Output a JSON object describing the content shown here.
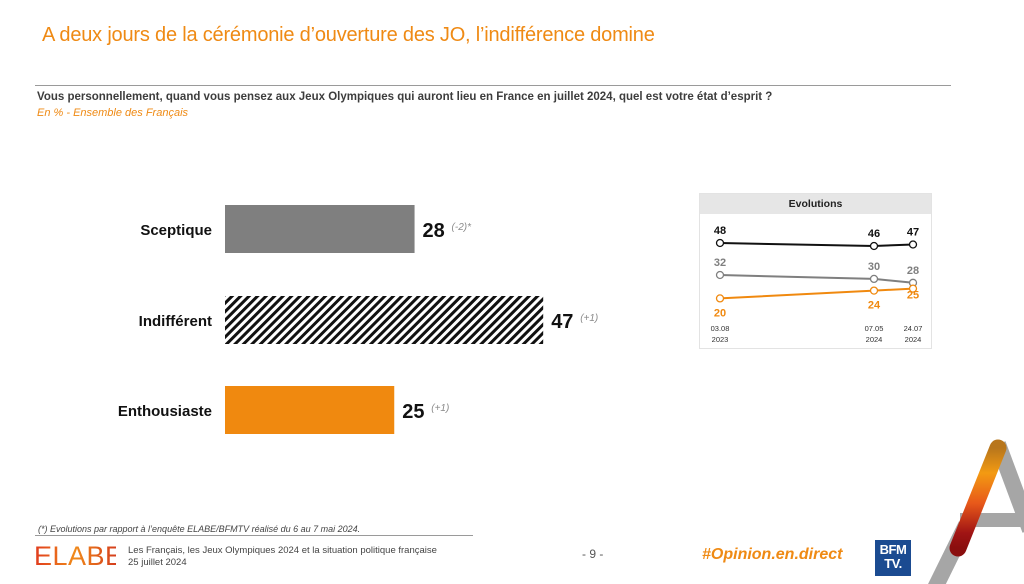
{
  "header": {
    "title": "A deux jours de la cérémonie d’ouverture des JO, l’indifférence domine",
    "question": "Vous personnellement, quand vous pensez aux Jeux Olympiques qui auront lieu en France en juillet 2024, quel est votre état d’esprit ?",
    "base": "En % - Ensemble des Français"
  },
  "chart_data": [
    {
      "type": "bar",
      "orientation": "horizontal",
      "title": "",
      "categories": [
        "Sceptique",
        "Indifférent",
        "Enthousiaste"
      ],
      "values": [
        28,
        47,
        25
      ],
      "deltas": [
        "(-2)*",
        "(+1)",
        "(+1)"
      ],
      "styles": [
        "solid-grey",
        "hatched-black",
        "solid-orange"
      ],
      "colors": [
        "#7f7f7f",
        "#111111",
        "#f0890f"
      ],
      "unit": "%",
      "xlim": [
        0,
        50
      ]
    },
    {
      "type": "line",
      "title": "Evolutions",
      "x": [
        "03.08 2023",
        "07.05 2024",
        "24.07 2024"
      ],
      "x_labels": [
        [
          "03.08",
          "2023"
        ],
        [
          "07.05",
          "2024"
        ],
        [
          "24.07",
          "2024"
        ]
      ],
      "series": [
        {
          "name": "Indifférent",
          "values": [
            48,
            46,
            47
          ],
          "color": "#111111"
        },
        {
          "name": "Sceptique",
          "values": [
            32,
            30,
            28
          ],
          "color": "#7f7f7f"
        },
        {
          "name": "Enthousiaste",
          "values": [
            20,
            24,
            25
          ],
          "color": "#f0890f"
        }
      ]
    }
  ],
  "footer": {
    "footnote": "(*) Evolutions par rapport à l’enquête ELABE/BFMTV réalisé du 6 au 7 mai 2024.",
    "logo_text": "ELABE",
    "study_title": "Les Français, les Jeux Olympiques 2024 et la situation politique française",
    "date": "25 juillet 2024",
    "page": "- 9 -",
    "hashtag": "#Opinion.en.direct",
    "bfm_line1": "BFM",
    "bfm_line2": "TV."
  },
  "colors": {
    "accent": "#ef8a14",
    "grey_bar": "#7f7f7f",
    "orange_bar": "#f0890f",
    "bfm_blue": "#1b4b91"
  }
}
